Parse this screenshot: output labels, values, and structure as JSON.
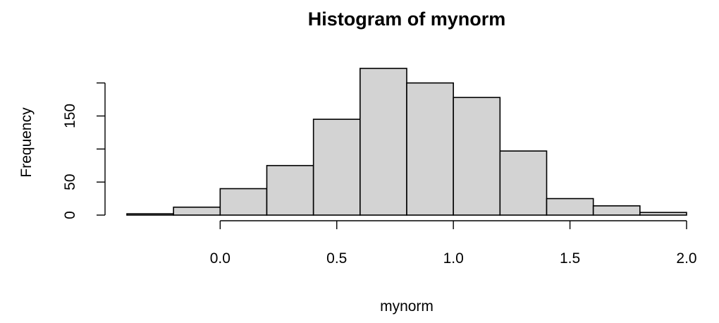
{
  "chart_data": {
    "type": "bar",
    "subtype": "histogram",
    "title": "Histogram of mynorm",
    "xlabel": "mynorm",
    "ylabel": "Frequency",
    "bin_edges": [
      -0.4,
      -0.2,
      0.0,
      0.2,
      0.4,
      0.6,
      0.8,
      1.0,
      1.2,
      1.4,
      1.6,
      1.8,
      2.0
    ],
    "values": [
      2,
      12,
      40,
      75,
      145,
      222,
      200,
      178,
      97,
      25,
      14,
      4
    ],
    "xlim": [
      -0.4,
      2.0
    ],
    "ylim": [
      0,
      222
    ],
    "x_ticks": [
      0.0,
      0.5,
      1.0,
      1.5,
      2.0
    ],
    "x_tick_labels": [
      "0.0",
      "0.5",
      "1.0",
      "1.5",
      "2.0"
    ],
    "y_ticks": [
      0,
      50,
      100,
      150,
      200
    ],
    "y_tick_labels": [
      "0",
      "50",
      "",
      "150",
      ""
    ],
    "grid": false,
    "legend": "none",
    "colors": {
      "bar_fill": "#d3d3d3",
      "bar_stroke": "#000000",
      "axis": "#000000",
      "text": "#000000"
    }
  }
}
